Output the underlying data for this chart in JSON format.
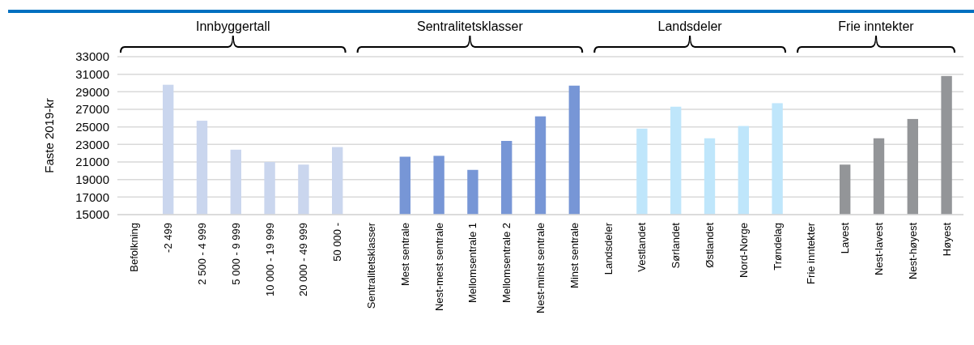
{
  "chart_data": {
    "type": "bar",
    "ylabel": "Faste 2019-kr",
    "categories": [
      "Befolkning",
      "-2 499",
      "2 500 - 4 999",
      "5 000 - 9 999",
      "10 000 - 19 999",
      "20 000 - 49 999",
      "50 000 -",
      "Sentralitetsklasser",
      "Mest sentrale",
      "Nest-mest sentrale",
      "Mellomsentrale 1",
      "Mellomsentrale 2",
      "Nest-minst sentrale",
      "Minst sentrale",
      "Landsdeler",
      "Vestlandet",
      "Sørlandet",
      "Østlandet",
      "Nord-Norge",
      "Trøndelag",
      "Frie inntekter",
      "Lavest",
      "Nest-lavest",
      "Nest-høyest",
      "Høyest"
    ],
    "values": [
      null,
      29800,
      25700,
      22400,
      21000,
      20700,
      22700,
      null,
      21600,
      21700,
      20100,
      23400,
      26200,
      29700,
      null,
      24800,
      27300,
      23700,
      25100,
      27700,
      null,
      20700,
      23700,
      25900,
      30800
    ],
    "colors": [
      null,
      "#cad6ee",
      "#cad6ee",
      "#cad6ee",
      "#cad6ee",
      "#cad6ee",
      "#cad6ee",
      null,
      "#7796d6",
      "#7796d6",
      "#7796d6",
      "#7796d6",
      "#7796d6",
      "#7796d6",
      null,
      "#bfe6fb",
      "#bfe6fb",
      "#bfe6fb",
      "#bfe6fb",
      "#bfe6fb",
      null,
      "#939598",
      "#939598",
      "#939598",
      "#939598"
    ],
    "ylim": [
      15000,
      33000
    ],
    "yticks": [
      15000,
      17000,
      19000,
      21000,
      23000,
      25000,
      27000,
      29000,
      31000,
      33000
    ],
    "grid": "y",
    "annotations": [
      "Innbyggertall",
      "Sentralitetsklasser",
      "Landsdeler",
      "Frie inntekter"
    ]
  }
}
